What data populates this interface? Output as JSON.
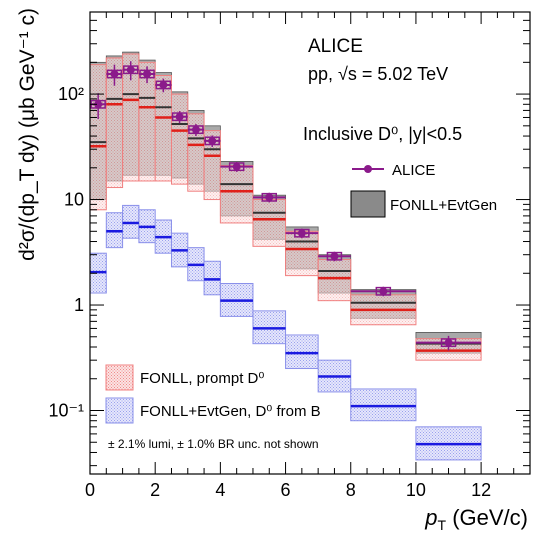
{
  "chart_data": {
    "type": "bar",
    "title": "",
    "xlabel": "p",
    "xlabel_sub": "T",
    "xlabel_unit": " (GeV/c)",
    "ylabel": "d²σ/(dp_T dy) (μb GeV⁻¹ c)",
    "xlim": [
      0,
      13.5
    ],
    "ylim": [
      0.025,
      600
    ],
    "y_scale": "log",
    "grid": false,
    "x_ticks": [
      "0",
      "2",
      "4",
      "6",
      "8",
      "10",
      "12"
    ],
    "y_ticks": [
      "10⁻¹",
      "1",
      "10",
      "10²"
    ],
    "y_tick_values": [
      0.1,
      1,
      10,
      100
    ],
    "annotations": {
      "experiment": "ALICE",
      "system": "pp, √s = 5.02 TeV",
      "selection": "Inclusive D⁰, |y|<0.5",
      "footnote": "± 2.1% lumi, ± 1.0% BR unc. not shown"
    },
    "legend": [
      {
        "label": "ALICE",
        "placement": "top-right"
      },
      {
        "label": "FONLL+EvtGen",
        "placement": "top-right"
      },
      {
        "label": "FONLL, prompt D⁰",
        "placement": "bottom-left"
      },
      {
        "label": "FONLL+EvtGen, D⁰ from B",
        "placement": "bottom-left"
      }
    ],
    "colors": {
      "alice": "#8b1a8b",
      "inclusive_band": "#808080",
      "prompt": "#e0201a",
      "prompt_band": "#f4a3a3",
      "feeddown": "#1a1ae0",
      "feeddown_band": "#a3a8f0"
    },
    "series": [
      {
        "name": "ALICE",
        "x_low": [
          0,
          0.5,
          1,
          1.5,
          2,
          2.5,
          3,
          3.5,
          4,
          5,
          6,
          7,
          8,
          10
        ],
        "x_high": [
          0.5,
          1,
          1.5,
          2,
          2.5,
          3,
          3.5,
          4,
          5,
          6,
          7,
          8,
          10,
          12
        ],
        "x": [
          0.25,
          0.75,
          1.25,
          1.75,
          2.25,
          2.75,
          3.25,
          3.75,
          4.5,
          5.5,
          6.5,
          7.5,
          9,
          11
        ],
        "values": [
          80,
          155,
          170,
          155,
          122,
          61,
          46,
          36,
          20.5,
          10.5,
          4.8,
          2.9,
          1.35,
          0.44
        ],
        "err": [
          22,
          35,
          35,
          28,
          18,
          8,
          6,
          4.5,
          2.2,
          1.1,
          0.5,
          0.3,
          0.14,
          0.07
        ]
      },
      {
        "name": "FONLL+EvtGen",
        "x_low": [
          0,
          0.5,
          1,
          1.5,
          2,
          2.5,
          3,
          3.5,
          4,
          5,
          6,
          7,
          8,
          10
        ],
        "x_high": [
          0.5,
          1,
          1.5,
          2,
          2.5,
          3,
          3.5,
          4,
          5,
          6,
          7,
          8,
          10,
          12
        ],
        "central": [
          35,
          90,
          100,
          92,
          75,
          52,
          38,
          30,
          14,
          7.5,
          4.0,
          2.1,
          1.05,
          0.43
        ],
        "low": [
          10,
          15,
          17,
          17,
          17,
          16,
          14,
          12,
          7,
          4.2,
          2.2,
          1.3,
          0.75,
          0.35
        ],
        "high": [
          200,
          230,
          250,
          210,
          160,
          105,
          70,
          50,
          23,
          11,
          5.5,
          3.0,
          1.4,
          0.55
        ]
      },
      {
        "name": "FONLL, prompt D⁰",
        "x_low": [
          0,
          0.5,
          1,
          1.5,
          2,
          2.5,
          3,
          3.5,
          4,
          5,
          6,
          7,
          8,
          10
        ],
        "x_high": [
          0.5,
          1,
          1.5,
          2,
          2.5,
          3,
          3.5,
          4,
          5,
          6,
          7,
          8,
          10,
          12
        ],
        "central": [
          32,
          80,
          88,
          75,
          60,
          45,
          33,
          26,
          12,
          6.5,
          3.4,
          1.8,
          0.9,
          0.37
        ],
        "low": [
          8,
          13,
          15,
          15,
          15,
          14,
          12,
          10,
          6,
          3.6,
          1.9,
          1.1,
          0.65,
          0.3
        ],
        "high": [
          190,
          220,
          240,
          200,
          150,
          100,
          65,
          45,
          21,
          10,
          5.0,
          2.7,
          1.25,
          0.48
        ]
      },
      {
        "name": "FONLL+EvtGen, D⁰ from B",
        "x_low": [
          0,
          0.5,
          1,
          1.5,
          2,
          2.5,
          3,
          3.5,
          4,
          5,
          6,
          7,
          8,
          10
        ],
        "x_high": [
          0.5,
          1,
          1.5,
          2,
          2.5,
          3,
          3.5,
          4,
          5,
          6,
          7,
          8,
          10,
          12
        ],
        "central": [
          2.05,
          5.0,
          6.0,
          5.5,
          4.4,
          3.3,
          2.4,
          1.75,
          1.1,
          0.6,
          0.35,
          0.21,
          0.11,
          0.048
        ],
        "low": [
          1.3,
          3.5,
          4.3,
          3.9,
          3.1,
          2.3,
          1.7,
          1.25,
          0.78,
          0.43,
          0.25,
          0.15,
          0.08,
          0.034
        ],
        "high": [
          3.1,
          7.5,
          8.8,
          8.0,
          6.4,
          4.8,
          3.5,
          2.6,
          1.6,
          0.88,
          0.52,
          0.3,
          0.16,
          0.07
        ]
      }
    ]
  }
}
